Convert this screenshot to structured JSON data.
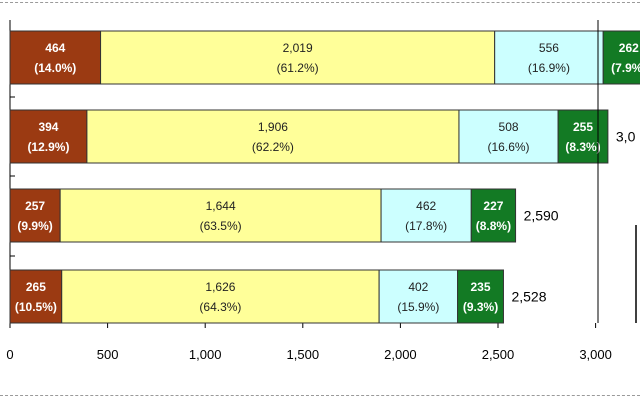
{
  "chart_data": {
    "type": "bar",
    "orientation": "horizontal",
    "stacked": true,
    "title": "",
    "xlabel": "",
    "ylabel": "",
    "xlim": [
      0,
      3000
    ],
    "x_ticks": [
      {
        "value": 0,
        "label": "0"
      },
      {
        "value": 500,
        "label": "500"
      },
      {
        "value": 1000,
        "label": "1,000"
      },
      {
        "value": 1500,
        "label": "1,500"
      },
      {
        "value": 2000,
        "label": "2,000"
      },
      {
        "value": 2500,
        "label": "2,500"
      },
      {
        "value": 3000,
        "label": "3,000"
      }
    ],
    "grid": false,
    "legend": "none",
    "rows": [
      {
        "total_label": "",
        "segments": [
          {
            "value": 464,
            "label": "464",
            "pct": "(14.0%)"
          },
          {
            "value": 2019,
            "label": "2,019",
            "pct": "(61.2%)"
          },
          {
            "value": 556,
            "label": "556",
            "pct": "(16.9%)"
          },
          {
            "value": 262,
            "label": "262",
            "pct": "(7.9%)"
          }
        ]
      },
      {
        "total_label": "3,0",
        "segments": [
          {
            "value": 394,
            "label": "394",
            "pct": "(12.9%)"
          },
          {
            "value": 1906,
            "label": "1,906",
            "pct": "(62.2%)"
          },
          {
            "value": 508,
            "label": "508",
            "pct": "(16.6%)"
          },
          {
            "value": 255,
            "label": "255",
            "pct": "(8.3%)"
          }
        ]
      },
      {
        "total_label": "2,590",
        "segments": [
          {
            "value": 257,
            "label": "257",
            "pct": "(9.9%)"
          },
          {
            "value": 1644,
            "label": "1,644",
            "pct": "(63.5%)"
          },
          {
            "value": 462,
            "label": "462",
            "pct": "(17.8%)"
          },
          {
            "value": 227,
            "label": "227",
            "pct": "(8.8%)"
          }
        ]
      },
      {
        "total_label": "2,528",
        "segments": [
          {
            "value": 265,
            "label": "265",
            "pct": "(10.5%)"
          },
          {
            "value": 1626,
            "label": "1,626",
            "pct": "(64.3%)"
          },
          {
            "value": 402,
            "label": "402",
            "pct": "(15.9%)"
          },
          {
            "value": 235,
            "label": "235",
            "pct": "(9.3%)"
          }
        ]
      }
    ],
    "segment_colors": [
      "#9b3a12",
      "#ffff99",
      "#ccffff",
      "#137a24"
    ],
    "segment_text_colors": [
      "#ffffff",
      "#222222",
      "#222222",
      "#ffffff"
    ]
  }
}
